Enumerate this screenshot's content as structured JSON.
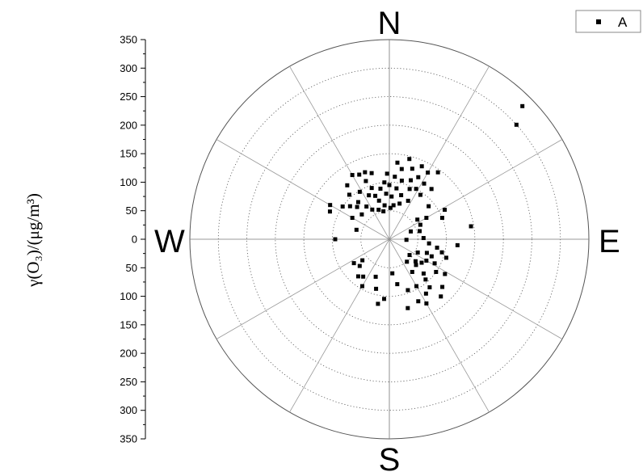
{
  "chart_data": {
    "type": "scatter",
    "subtype": "polar",
    "ylabel": "γ(O₃)/(μg/m³)",
    "radial_range": [
      0,
      350
    ],
    "radial_ticks": [
      "350",
      "300",
      "250",
      "200",
      "150",
      "100",
      "50",
      "0",
      "50",
      "100",
      "150",
      "200",
      "250",
      "300",
      "350"
    ],
    "angular_labels": {
      "north": "N",
      "east": "E",
      "south": "S",
      "west": "W"
    },
    "spokes_deg": [
      0,
      30,
      60,
      90,
      120,
      150,
      180,
      210,
      240,
      270,
      300,
      330
    ],
    "grid": true,
    "legend": {
      "placement": "top-right",
      "entries": [
        "A"
      ]
    },
    "colors": {
      "points": "#000000",
      "grid": "#555555"
    },
    "series": [
      {
        "name": "A",
        "points": [
          {
            "bearing": 286,
            "value": 60
          },
          {
            "bearing": 300,
            "value": 75
          },
          {
            "bearing": 330,
            "value": 130
          },
          {
            "bearing": 335,
            "value": 125
          },
          {
            "bearing": 338,
            "value": 110
          },
          {
            "bearing": 340,
            "value": 125
          },
          {
            "bearing": 341,
            "value": 95
          },
          {
            "bearing": 345,
            "value": 120
          },
          {
            "bearing": 342,
            "value": 80
          },
          {
            "bearing": 320,
            "value": 85
          },
          {
            "bearing": 315,
            "value": 80
          },
          {
            "bearing": 310,
            "value": 90
          },
          {
            "bearing": 325,
            "value": 70
          },
          {
            "bearing": 305,
            "value": 100
          },
          {
            "bearing": 295,
            "value": 115
          },
          {
            "bearing": 300,
            "value": 120
          },
          {
            "bearing": 318,
            "value": 105
          },
          {
            "bearing": 322,
            "value": 120
          },
          {
            "bearing": 328,
            "value": 98
          },
          {
            "bearing": 312,
            "value": 65
          },
          {
            "bearing": 330,
            "value": 60
          },
          {
            "bearing": 335,
            "value": 85
          },
          {
            "bearing": 345,
            "value": 70
          },
          {
            "bearing": 350,
            "value": 90
          },
          {
            "bearing": 352,
            "value": 60
          },
          {
            "bearing": 356,
            "value": 80
          },
          {
            "bearing": 355,
            "value": 100
          },
          {
            "bearing": 358,
            "value": 115
          },
          {
            "bearing": 0,
            "value": 95
          },
          {
            "bearing": 3,
            "value": 75
          },
          {
            "bearing": 5,
            "value": 110
          },
          {
            "bearing": 8,
            "value": 90
          },
          {
            "bearing": 10,
            "value": 125
          },
          {
            "bearing": 12,
            "value": 105
          },
          {
            "bearing": 15,
            "value": 80
          },
          {
            "bearing": 18,
            "value": 130
          },
          {
            "bearing": 20,
            "value": 110
          },
          {
            "bearing": 22,
            "value": 95
          },
          {
            "bearing": 25,
            "value": 120
          },
          {
            "bearing": 28,
            "value": 100
          },
          {
            "bearing": 30,
            "value": 135
          },
          {
            "bearing": 32,
            "value": 115
          },
          {
            "bearing": 35,
            "value": 95
          },
          {
            "bearing": 24,
            "value": 140
          },
          {
            "bearing": 14,
            "value": 145
          },
          {
            "bearing": 6,
            "value": 135
          },
          {
            "bearing": 2,
            "value": 55
          },
          {
            "bearing": 348,
            "value": 50
          },
          {
            "bearing": 340,
            "value": 55
          },
          {
            "bearing": 7,
            "value": 60
          },
          {
            "bearing": 16,
            "value": 65
          },
          {
            "bearing": 26,
            "value": 75
          },
          {
            "bearing": 36,
            "value": 145
          },
          {
            "bearing": 40,
            "value": 115
          },
          {
            "bearing": 50,
            "value": 90
          },
          {
            "bearing": 55,
            "value": 60
          },
          {
            "bearing": 60,
            "value": 75
          },
          {
            "bearing": 65,
            "value": 60
          },
          {
            "bearing": 70,
            "value": 40
          },
          {
            "bearing": 62,
            "value": 110
          },
          {
            "bearing": 75,
            "value": 55
          },
          {
            "bearing": 68,
            "value": 100
          },
          {
            "bearing": 81,
            "value": 145
          },
          {
            "bearing": 100,
            "value": 85
          },
          {
            "bearing": 95,
            "value": 120
          },
          {
            "bearing": 110,
            "value": 70
          },
          {
            "bearing": 115,
            "value": 55
          },
          {
            "bearing": 120,
            "value": 75
          },
          {
            "bearing": 125,
            "value": 100
          },
          {
            "bearing": 130,
            "value": 60
          },
          {
            "bearing": 135,
            "value": 85
          },
          {
            "bearing": 140,
            "value": 110
          },
          {
            "bearing": 145,
            "value": 70
          },
          {
            "bearing": 150,
            "value": 95
          },
          {
            "bearing": 132,
            "value": 125
          },
          {
            "bearing": 118,
            "value": 90
          },
          {
            "bearing": 108,
            "value": 105
          },
          {
            "bearing": 128,
            "value": 45
          },
          {
            "bearing": 122,
            "value": 115
          },
          {
            "bearing": 138,
            "value": 95
          },
          {
            "bearing": 142,
            "value": 50
          },
          {
            "bearing": 112,
            "value": 80
          },
          {
            "bearing": 126,
            "value": 70
          },
          {
            "bearing": 134,
            "value": 65
          },
          {
            "bearing": 146,
            "value": 115
          },
          {
            "bearing": 155,
            "value": 120
          },
          {
            "bearing": 160,
            "value": 95
          },
          {
            "bearing": 165,
            "value": 125
          },
          {
            "bearing": 170,
            "value": 80
          },
          {
            "bearing": 175,
            "value": 60
          },
          {
            "bearing": 185,
            "value": 105
          },
          {
            "bearing": 190,
            "value": 115
          },
          {
            "bearing": 195,
            "value": 90
          },
          {
            "bearing": 200,
            "value": 70
          },
          {
            "bearing": 210,
            "value": 95
          },
          {
            "bearing": 215,
            "value": 80
          },
          {
            "bearing": 220,
            "value": 85
          },
          {
            "bearing": 228,
            "value": 70
          },
          {
            "bearing": 232,
            "value": 60
          },
          {
            "bearing": 236,
            "value": 75
          },
          {
            "bearing": 150,
            "value": 130
          },
          {
            "bearing": 138,
            "value": 135
          },
          {
            "bearing": 104,
            "value": 95
          },
          {
            "bearing": 96,
            "value": 70
          },
          {
            "bearing": 88,
            "value": 60
          },
          {
            "bearing": 92,
            "value": 30
          },
          {
            "bearing": 270,
            "value": 95
          },
          {
            "bearing": 45,
            "value": 330
          },
          {
            "bearing": 48,
            "value": 300
          }
        ]
      }
    ]
  }
}
